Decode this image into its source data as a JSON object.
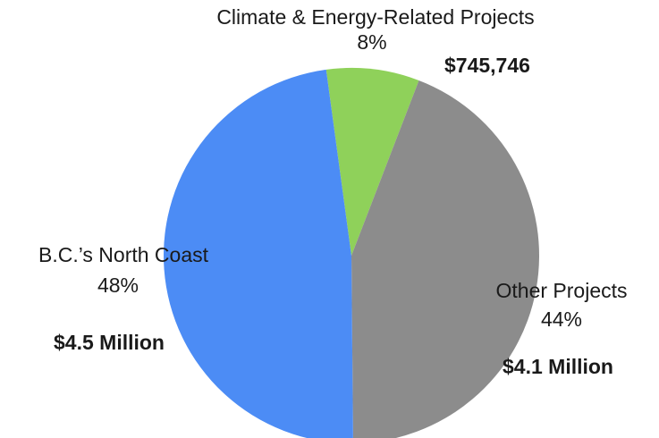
{
  "chart_data": {
    "type": "pie",
    "title": "",
    "slices": [
      {
        "name": "Climate & Energy-Related Projects",
        "percent_label": "8%",
        "amount_label": "$745,746",
        "value": 8,
        "color": "#8fd15a"
      },
      {
        "name": "Other Projects",
        "percent_label": "44%",
        "amount_label": "$4.1 Million",
        "value": 44,
        "color": "#8c8c8c"
      },
      {
        "name": "B.C.’s North Coast",
        "percent_label": "48%",
        "amount_label": "$4.5 Million",
        "value": 48,
        "color": "#4c8cf5"
      }
    ]
  }
}
